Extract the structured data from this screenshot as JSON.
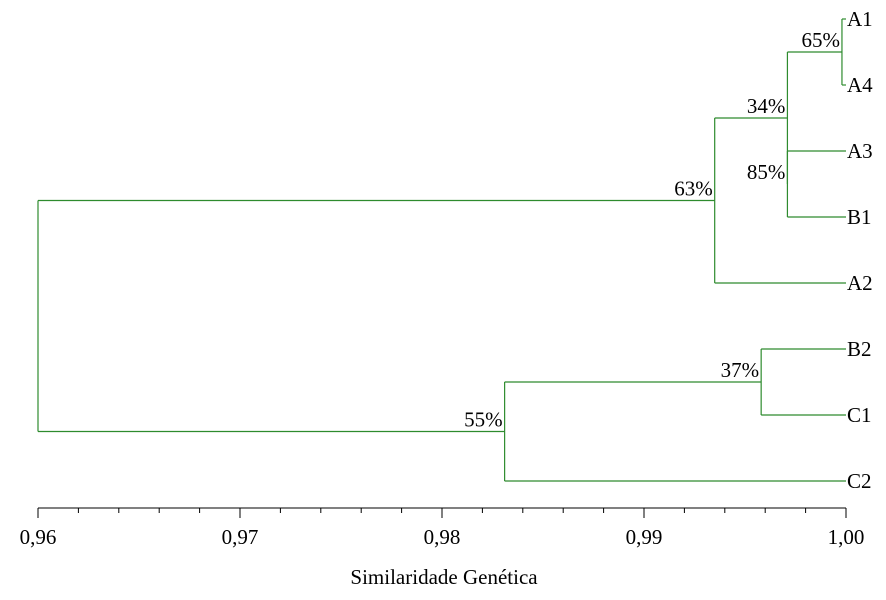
{
  "chart_data": {
    "type": "dendrogram",
    "xlabel": "Similaridade Genética",
    "xlim": [
      0.96,
      1.0
    ],
    "x_ticks": [
      {
        "value": 0.96,
        "label": "0,96"
      },
      {
        "value": 0.97,
        "label": "0,97"
      },
      {
        "value": 0.98,
        "label": "0,98"
      },
      {
        "value": 0.99,
        "label": "0,99"
      },
      {
        "value": 1.0,
        "label": "1,00"
      }
    ],
    "minor_tick_step": 0.002,
    "branch_color": "#2e8b2e",
    "leaves": [
      "A1",
      "A4",
      "A3",
      "B1",
      "A2",
      "B2",
      "C1",
      "C2"
    ],
    "clusters": [
      {
        "id": "n1",
        "children": [
          "A1",
          "A4"
        ],
        "similarity": 0.9998,
        "support": "65%"
      },
      {
        "id": "n2",
        "children": [
          "A3",
          "B1"
        ],
        "similarity": 0.9971,
        "support": "85%"
      },
      {
        "id": "n3",
        "children": [
          "n1",
          "n2"
        ],
        "similarity": 0.9971,
        "support": "34%"
      },
      {
        "id": "n4",
        "children": [
          "n3",
          "A2"
        ],
        "similarity": 0.9935,
        "support": "63%"
      },
      {
        "id": "n5",
        "children": [
          "B2",
          "C1"
        ],
        "similarity": 0.9958,
        "support": "37%"
      },
      {
        "id": "n6",
        "children": [
          "n5",
          "C2"
        ],
        "similarity": 0.9831,
        "support": "55%"
      },
      {
        "id": "root",
        "children": [
          "n4",
          "n6"
        ],
        "similarity": 0.96,
        "support": ""
      }
    ]
  }
}
